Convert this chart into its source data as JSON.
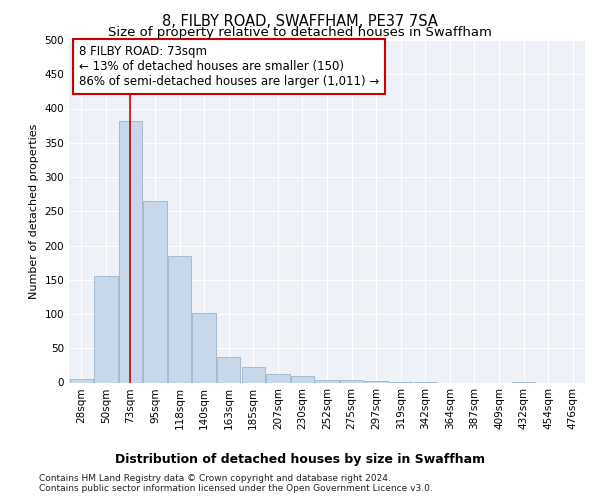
{
  "title": "8, FILBY ROAD, SWAFFHAM, PE37 7SA",
  "subtitle": "Size of property relative to detached houses in Swaffham",
  "xlabel": "Distribution of detached houses by size in Swaffham",
  "ylabel": "Number of detached properties",
  "bins": [
    "28sqm",
    "50sqm",
    "73sqm",
    "95sqm",
    "118sqm",
    "140sqm",
    "163sqm",
    "185sqm",
    "207sqm",
    "230sqm",
    "252sqm",
    "275sqm",
    "297sqm",
    "319sqm",
    "342sqm",
    "364sqm",
    "387sqm",
    "409sqm",
    "432sqm",
    "454sqm",
    "476sqm"
  ],
  "values": [
    5,
    155,
    382,
    265,
    185,
    102,
    37,
    22,
    12,
    10,
    3,
    3,
    2,
    1,
    1,
    0,
    0,
    0,
    1,
    0,
    0
  ],
  "bar_color": "#c8d8eb",
  "bar_edge_color": "#9ab4cc",
  "redline_bin_idx": 2,
  "annotation_line1": "8 FILBY ROAD: 73sqm",
  "annotation_line2": "← 13% of detached houses are smaller (150)",
  "annotation_line3": "86% of semi-detached houses are larger (1,011) →",
  "annotation_box_facecolor": "#ffffff",
  "annotation_box_edgecolor": "#cc0000",
  "redline_color": "#cc0000",
  "ylim": [
    0,
    500
  ],
  "yticks": [
    0,
    50,
    100,
    150,
    200,
    250,
    300,
    350,
    400,
    450,
    500
  ],
  "background_color": "#eef2f8",
  "grid_color": "#ffffff",
  "footer_line1": "Contains HM Land Registry data © Crown copyright and database right 2024.",
  "footer_line2": "Contains public sector information licensed under the Open Government Licence v3.0.",
  "title_fontsize": 10.5,
  "subtitle_fontsize": 9.5,
  "xlabel_fontsize": 9,
  "ylabel_fontsize": 8,
  "tick_fontsize": 7.5,
  "annotation_fontsize": 8.5,
  "footer_fontsize": 6.5
}
